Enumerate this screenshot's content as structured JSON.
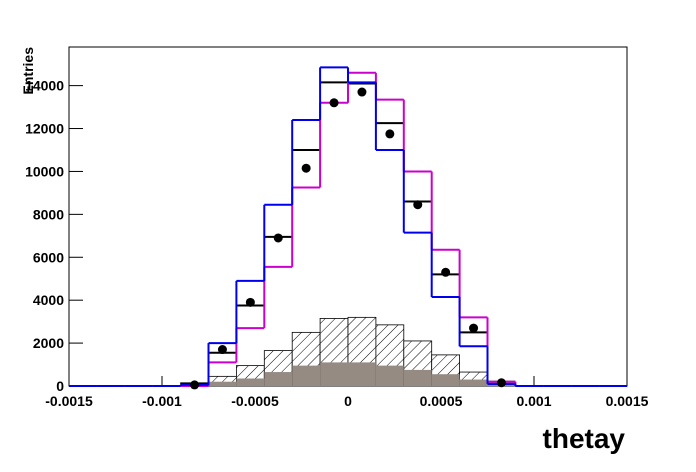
{
  "chart_data": {
    "type": "histogram",
    "xlabel": "thetay",
    "ylabel": "Entries",
    "bins": [
      -0.0015,
      -0.00135,
      -0.0012,
      -0.00105,
      -0.0009,
      -0.00075,
      -0.0006,
      -0.00045,
      -0.0003,
      -0.00015,
      0,
      0.00015,
      0.0003,
      0.00045,
      0.0006,
      0.00075,
      0.0009,
      0.00105,
      0.0012,
      0.00135,
      0.0015
    ],
    "xlim": [
      -0.0015,
      0.0015
    ],
    "xticks": [
      -0.0015,
      -0.001,
      -0.0005,
      0,
      0.0005,
      0.001,
      0.0015
    ],
    "ylim": [
      0,
      15800
    ],
    "yticks": [
      0,
      2000,
      4000,
      6000,
      8000,
      10000,
      12000,
      14000
    ],
    "series": [
      {
        "style": "hatch",
        "color": "#000000",
        "values": [
          0,
          0,
          0,
          0,
          150,
          450,
          950,
          1650,
          2500,
          3150,
          3200,
          2850,
          2100,
          1450,
          650,
          50,
          0,
          0,
          0,
          0
        ]
      },
      {
        "style": "fill",
        "color": "#968b83",
        "values": [
          0,
          0,
          0,
          0,
          50,
          200,
          350,
          650,
          950,
          1100,
          1100,
          950,
          750,
          550,
          300,
          50,
          0,
          0,
          0,
          0
        ]
      },
      {
        "style": "level",
        "color": "#000000",
        "values": [
          0,
          0,
          0,
          0,
          100,
          1550,
          3750,
          6950,
          11000,
          14150,
          14100,
          12250,
          8600,
          5200,
          2500,
          200,
          0,
          0,
          0,
          0
        ]
      },
      {
        "style": "step",
        "color": "#cc00cc",
        "values": [
          0,
          0,
          0,
          0,
          0,
          1100,
          2700,
          5550,
          9250,
          13200,
          14600,
          13350,
          10000,
          6350,
          3200,
          200,
          0,
          0,
          0,
          0
        ]
      },
      {
        "style": "step",
        "color": "#0000ee",
        "values": [
          0,
          0,
          0,
          0,
          50,
          2000,
          4900,
          8450,
          12400,
          14850,
          14150,
          11000,
          7150,
          4150,
          1850,
          100,
          0,
          0,
          0,
          0
        ]
      },
      {
        "style": "markers",
        "color": "#000000",
        "values": [
          0,
          0,
          0,
          0,
          50,
          1700,
          3900,
          6900,
          10150,
          13200,
          13700,
          11750,
          8450,
          5300,
          2700,
          150,
          0,
          0,
          0,
          0
        ]
      }
    ]
  }
}
